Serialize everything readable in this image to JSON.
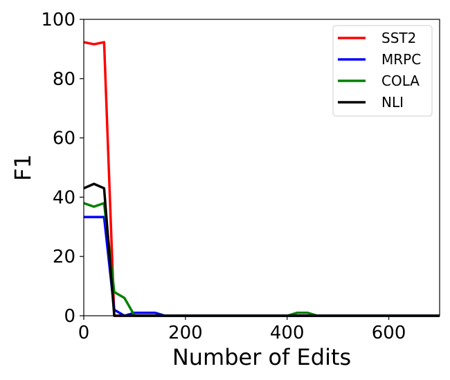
{
  "chart_data": {
    "type": "line",
    "xlabel": "Number of Edits",
    "ylabel": "F1",
    "xlim": [
      0,
      700
    ],
    "ylim": [
      0,
      100
    ],
    "xticks": [
      0,
      200,
      400,
      600
    ],
    "yticks": [
      0,
      20,
      40,
      60,
      80,
      100
    ],
    "grid": false,
    "legend_position": "top-right",
    "series": [
      {
        "name": "SST2",
        "color": "#ff0000",
        "points": [
          [
            0,
            92.3
          ],
          [
            20,
            91.6
          ],
          [
            40,
            92.3
          ],
          [
            60,
            0
          ],
          [
            80,
            0
          ],
          [
            100,
            0
          ],
          [
            200,
            0
          ],
          [
            400,
            0
          ],
          [
            600,
            0
          ],
          [
            700,
            0
          ]
        ]
      },
      {
        "name": "MRPC",
        "color": "#0000ff",
        "points": [
          [
            0,
            33.3
          ],
          [
            20,
            33.3
          ],
          [
            40,
            33.3
          ],
          [
            60,
            2
          ],
          [
            80,
            0
          ],
          [
            100,
            1
          ],
          [
            120,
            1
          ],
          [
            140,
            1
          ],
          [
            160,
            0
          ],
          [
            200,
            0
          ],
          [
            400,
            0
          ],
          [
            600,
            0
          ],
          [
            700,
            0
          ]
        ]
      },
      {
        "name": "COLA",
        "color": "#008000",
        "points": [
          [
            0,
            38
          ],
          [
            20,
            36.8
          ],
          [
            40,
            38
          ],
          [
            60,
            8
          ],
          [
            80,
            6
          ],
          [
            100,
            0
          ],
          [
            200,
            0
          ],
          [
            400,
            0
          ],
          [
            420,
            1
          ],
          [
            440,
            1
          ],
          [
            460,
            0
          ],
          [
            600,
            0
          ],
          [
            700,
            0
          ]
        ]
      },
      {
        "name": "NLI",
        "color": "#000000",
        "points": [
          [
            0,
            43
          ],
          [
            20,
            44.5
          ],
          [
            40,
            43
          ],
          [
            60,
            0
          ],
          [
            80,
            0
          ],
          [
            100,
            0
          ],
          [
            200,
            0
          ],
          [
            400,
            0
          ],
          [
            600,
            0
          ],
          [
            700,
            0
          ]
        ]
      }
    ]
  }
}
